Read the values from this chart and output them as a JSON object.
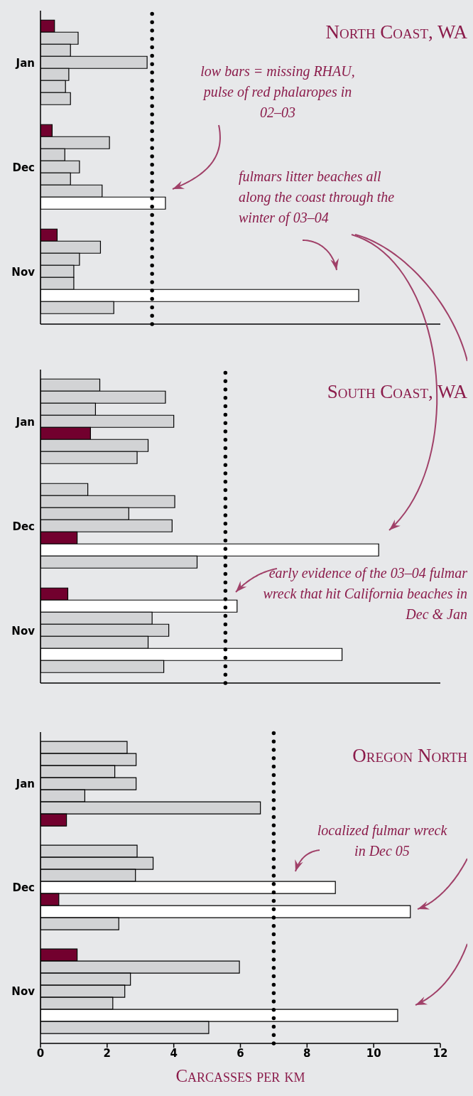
{
  "chart_data": [
    {
      "type": "bar",
      "orientation": "horizontal",
      "title": "North Coast, WA",
      "categories": [
        "Jan",
        "Dec",
        "Nov"
      ],
      "xlim": [
        0,
        12
      ],
      "xticks": [
        0,
        2,
        4,
        6,
        8,
        10,
        12
      ],
      "tick_labels": "y",
      "grid": false,
      "series": [
        {
          "values": [
            0.42,
            0.35,
            0.5
          ],
          "colors": [
            "#72002e",
            "#72002e",
            "#72002e"
          ]
        },
        {
          "values": [
            1.13,
            2.07,
            1.8
          ],
          "colors": [
            "#d2d3d5",
            "#d2d3d5",
            "#d2d3d5"
          ]
        },
        {
          "values": [
            0.9,
            0.73,
            1.17
          ],
          "colors": [
            "#d2d3d5",
            "#d2d3d5",
            "#d2d3d5"
          ]
        },
        {
          "values": [
            3.2,
            1.17,
            1.0
          ],
          "colors": [
            "#d2d3d5",
            "#d2d3d5",
            "#d2d3d5"
          ]
        },
        {
          "values": [
            0.85,
            0.9,
            1.0
          ],
          "colors": [
            "#d2d3d5",
            "#d2d3d5",
            "#d2d3d5"
          ]
        },
        {
          "values": [
            0.75,
            1.85,
            9.55
          ],
          "colors": [
            "#d2d3d5",
            "#d2d3d5",
            "#ffffff"
          ]
        },
        {
          "values": [
            0.9,
            3.75,
            2.2
          ],
          "colors": [
            "#d2d3d5",
            "#ffffff",
            "#d2d3d5"
          ]
        }
      ],
      "ref_lines": [
        {
          "axis": "x",
          "value": 3.35,
          "color": "#000000",
          "line_style": "dotted"
        }
      ],
      "annotations": [
        "low bars = missing RHAU, pulse of red phalaropes in 02–03",
        "fulmars litter beaches all along the coast through the winter of 03–04"
      ]
    },
    {
      "type": "bar",
      "orientation": "horizontal",
      "title": "South Coast, WA",
      "categories": [
        "Jan",
        "Dec",
        "Nov"
      ],
      "xlim": [
        0,
        12
      ],
      "xticks": [
        0,
        2,
        4,
        6,
        8,
        10,
        12
      ],
      "tick_labels": "y",
      "grid": false,
      "series": [
        {
          "values": [
            1.78,
            1.42,
            0.82
          ],
          "colors": [
            "#d2d3d5",
            "#d2d3d5",
            "#72002e"
          ]
        },
        {
          "values": [
            3.75,
            4.03,
            5.9
          ],
          "colors": [
            "#d2d3d5",
            "#d2d3d5",
            "#ffffff"
          ]
        },
        {
          "values": [
            1.65,
            2.65,
            3.35
          ],
          "colors": [
            "#d2d3d5",
            "#d2d3d5",
            "#d2d3d5"
          ]
        },
        {
          "values": [
            4.0,
            3.95,
            3.85
          ],
          "colors": [
            "#d2d3d5",
            "#d2d3d5",
            "#d2d3d5"
          ]
        },
        {
          "values": [
            1.5,
            1.1,
            3.23
          ],
          "colors": [
            "#72002e",
            "#72002e",
            "#d2d3d5"
          ]
        },
        {
          "values": [
            3.23,
            10.15,
            9.05
          ],
          "colors": [
            "#d2d3d5",
            "#ffffff",
            "#ffffff"
          ]
        },
        {
          "values": [
            2.9,
            4.7,
            3.7
          ],
          "colors": [
            "#d2d3d5",
            "#d2d3d5",
            "#d2d3d5"
          ]
        }
      ],
      "ref_lines": [
        {
          "axis": "x",
          "value": 5.55,
          "color": "#000000",
          "line_style": "dotted"
        }
      ],
      "annotations": [
        "early evidence of the 03–04 fulmar wreck that hit California beaches in Dec & Jan"
      ]
    },
    {
      "type": "bar",
      "orientation": "horizontal",
      "title": "Oregon North",
      "xlabel": "Carcasses per km",
      "categories": [
        "Jan",
        "Dec",
        "Nov"
      ],
      "xlim": [
        0,
        12
      ],
      "xticks": [
        0,
        2,
        4,
        6,
        8,
        10,
        12
      ],
      "grid": false,
      "series": [
        {
          "values": [
            2.6,
            2.9,
            1.1
          ],
          "colors": [
            "#d2d3d5",
            "#d2d3d5",
            "#72002e"
          ]
        },
        {
          "values": [
            2.87,
            3.38,
            5.97
          ],
          "colors": [
            "#d2d3d5",
            "#d2d3d5",
            "#d2d3d5"
          ]
        },
        {
          "values": [
            2.23,
            2.85,
            2.7
          ],
          "colors": [
            "#d2d3d5",
            "#d2d3d5",
            "#d2d3d5"
          ]
        },
        {
          "values": [
            2.87,
            8.85,
            2.53
          ],
          "colors": [
            "#d2d3d5",
            "#ffffff",
            "#d2d3d5"
          ]
        },
        {
          "values": [
            1.33,
            0.55,
            2.17
          ],
          "colors": [
            "#d2d3d5",
            "#72002e",
            "#d2d3d5"
          ]
        },
        {
          "values": [
            6.6,
            11.1,
            10.72
          ],
          "colors": [
            "#d2d3d5",
            "#ffffff",
            "#ffffff"
          ]
        },
        {
          "values": [
            0.78,
            2.35,
            5.05
          ],
          "colors": [
            "#72002e",
            "#d2d3d5",
            "#d2d3d5"
          ]
        }
      ],
      "ref_lines": [
        {
          "axis": "x",
          "value": 7.0,
          "color": "#000000",
          "line_style": "dotted"
        }
      ],
      "annotations": [
        "localized fulmar wreck in Dec 05"
      ]
    }
  ]
}
